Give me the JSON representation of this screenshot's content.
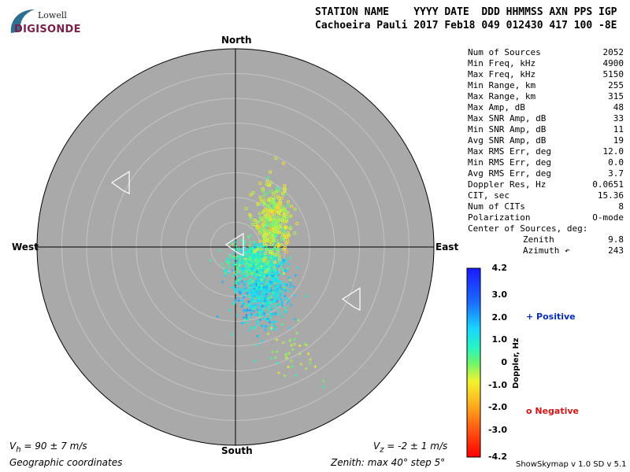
{
  "logo": {
    "line1": "Lowell",
    "line2": "DIGISONDE"
  },
  "header": {
    "labels": "STATION NAME    YYYY DATE  DDD HHMMSS AXN PPS IGP",
    "values": "Cachoeira Pauli 2017 Feb18 049 012430 417 100 -8E"
  },
  "directions": {
    "north": "North",
    "south": "South",
    "east": "East",
    "west": "West"
  },
  "stats": [
    {
      "label": "Num of Sources",
      "value": "2052"
    },
    {
      "label": "Min Freq, kHz",
      "value": "4900"
    },
    {
      "label": "Max Freq, kHz",
      "value": "5150"
    },
    {
      "label": "Min Range, km",
      "value": "255"
    },
    {
      "label": "Max Range, km",
      "value": "315"
    },
    {
      "label": "Max Amp, dB",
      "value": "48"
    },
    {
      "label": "Max SNR Amp, dB",
      "value": "33"
    },
    {
      "label": "Min SNR Amp, dB",
      "value": "11"
    },
    {
      "label": "Avg SNR Amp, dB",
      "value": "19"
    },
    {
      "label": "Max RMS Err, deg",
      "value": "12.0"
    },
    {
      "label": "Min RMS Err, deg",
      "value": "0.0"
    },
    {
      "label": "Avg RMS Err, deg",
      "value": "3.7"
    },
    {
      "label": "Doppler Res, Hz",
      "value": "0.0651"
    },
    {
      "label": "CIT, sec",
      "value": "15.36"
    },
    {
      "label": "Num of CITs",
      "value": "8"
    },
    {
      "label": "Polarization",
      "value": "O-mode"
    },
    {
      "label": "Center of Sources, deg:",
      "value": ""
    },
    {
      "label": "Zenith",
      "value": "9.8"
    },
    {
      "label": "Azimuth ↶",
      "value": "243"
    }
  ],
  "colorbar": {
    "label": "Doppler, Hz",
    "ticks": [
      "4.2",
      "3.0",
      "2.0",
      "1.0",
      "0",
      "-1.0",
      "-2.0",
      "-3.0",
      "-4.2"
    ]
  },
  "legend": {
    "positive": "+ Positive",
    "negative": "o Negative"
  },
  "footer": {
    "vh": "V",
    "vh_sub": "h",
    "vh_rest": " = 90 ± 7 m/s",
    "vz": "V",
    "vz_sub": "z",
    "vz_rest": " = -2 ± 1 m/s",
    "coords": "Geographic coordinates",
    "zenith": "Zenith: max 40°  step 5°",
    "version": "ShowSkymap v 1.0   SD v 5.1"
  },
  "chart_data": {
    "type": "scatter",
    "coordinate_system": "polar skymap (zenith angle, azimuth)",
    "zenith_max_deg": 40,
    "zenith_step_deg": 5,
    "colorbar_range_hz": [
      -4.2,
      4.2
    ],
    "colors": {
      "background": "#a9a9a9",
      "positive_marker": "#0a2db5",
      "negative_marker": "#d41515"
    },
    "clusters": [
      {
        "name": "",
        "marker": "+",
        "center_east_deg": 5.5,
        "center_north_deg": -8.5,
        "spread_east_deg": 4.5,
        "spread_north_deg": 6.0,
        "doppler_hz": 1.2,
        "count": 700
      },
      {
        "name": "",
        "marker": "+",
        "center_east_deg": 4.0,
        "center_north_deg": -3.0,
        "spread_east_deg": 4.0,
        "spread_north_deg": 3.0,
        "doppler_hz": 0.6,
        "count": 500
      },
      {
        "name": "",
        "marker": "o",
        "center_east_deg": 7.5,
        "center_north_deg": 5.0,
        "spread_east_deg": 3.0,
        "spread_north_deg": 6.0,
        "doppler_hz": -0.6,
        "count": 350
      },
      {
        "name": "",
        "marker": "+",
        "center_east_deg": 12.0,
        "center_north_deg": -22.0,
        "spread_east_deg": 4.0,
        "spread_north_deg": 5.0,
        "doppler_hz": -0.3,
        "count": 40
      }
    ],
    "wind_markers": [
      {
        "east_deg": -23.0,
        "north_deg": 13.0
      },
      {
        "east_deg": 0.0,
        "north_deg": 0.5
      },
      {
        "east_deg": 23.5,
        "north_deg": -10.5
      }
    ]
  }
}
